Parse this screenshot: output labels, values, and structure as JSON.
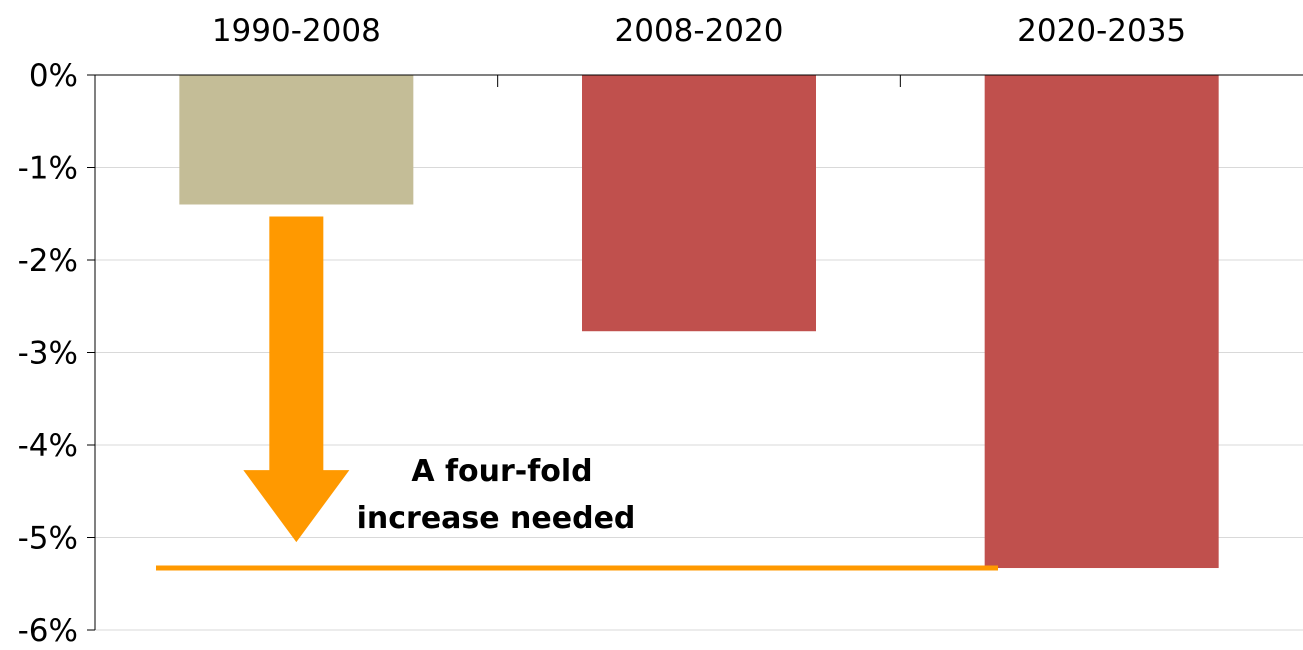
{
  "chart_data": {
    "type": "bar",
    "categories": [
      "1990-2008",
      "2008-2020",
      "2020-2035"
    ],
    "values": [
      -1.4,
      -2.77,
      -5.33
    ],
    "ylim": [
      -6,
      0
    ],
    "y_ticks": [
      "0%",
      "-1%",
      "-2%",
      "-3%",
      "-4%",
      "-5%",
      "-6%"
    ],
    "y_tick_values": [
      0,
      -1,
      -2,
      -3,
      -4,
      -5,
      -6
    ],
    "category_axis_position": "top",
    "grid": true,
    "annotation": {
      "lines": [
        "A four-fold",
        "increase needed"
      ],
      "reference_level": -5.33,
      "arrow_from": -1.53,
      "arrow_to": -5.05
    },
    "colors": {
      "bars": [
        "#c4bd97",
        "#c0504d",
        "#c0504d"
      ],
      "annotation": "#ff9900",
      "grid": "#d9d9d9",
      "axis": "#000000"
    }
  }
}
